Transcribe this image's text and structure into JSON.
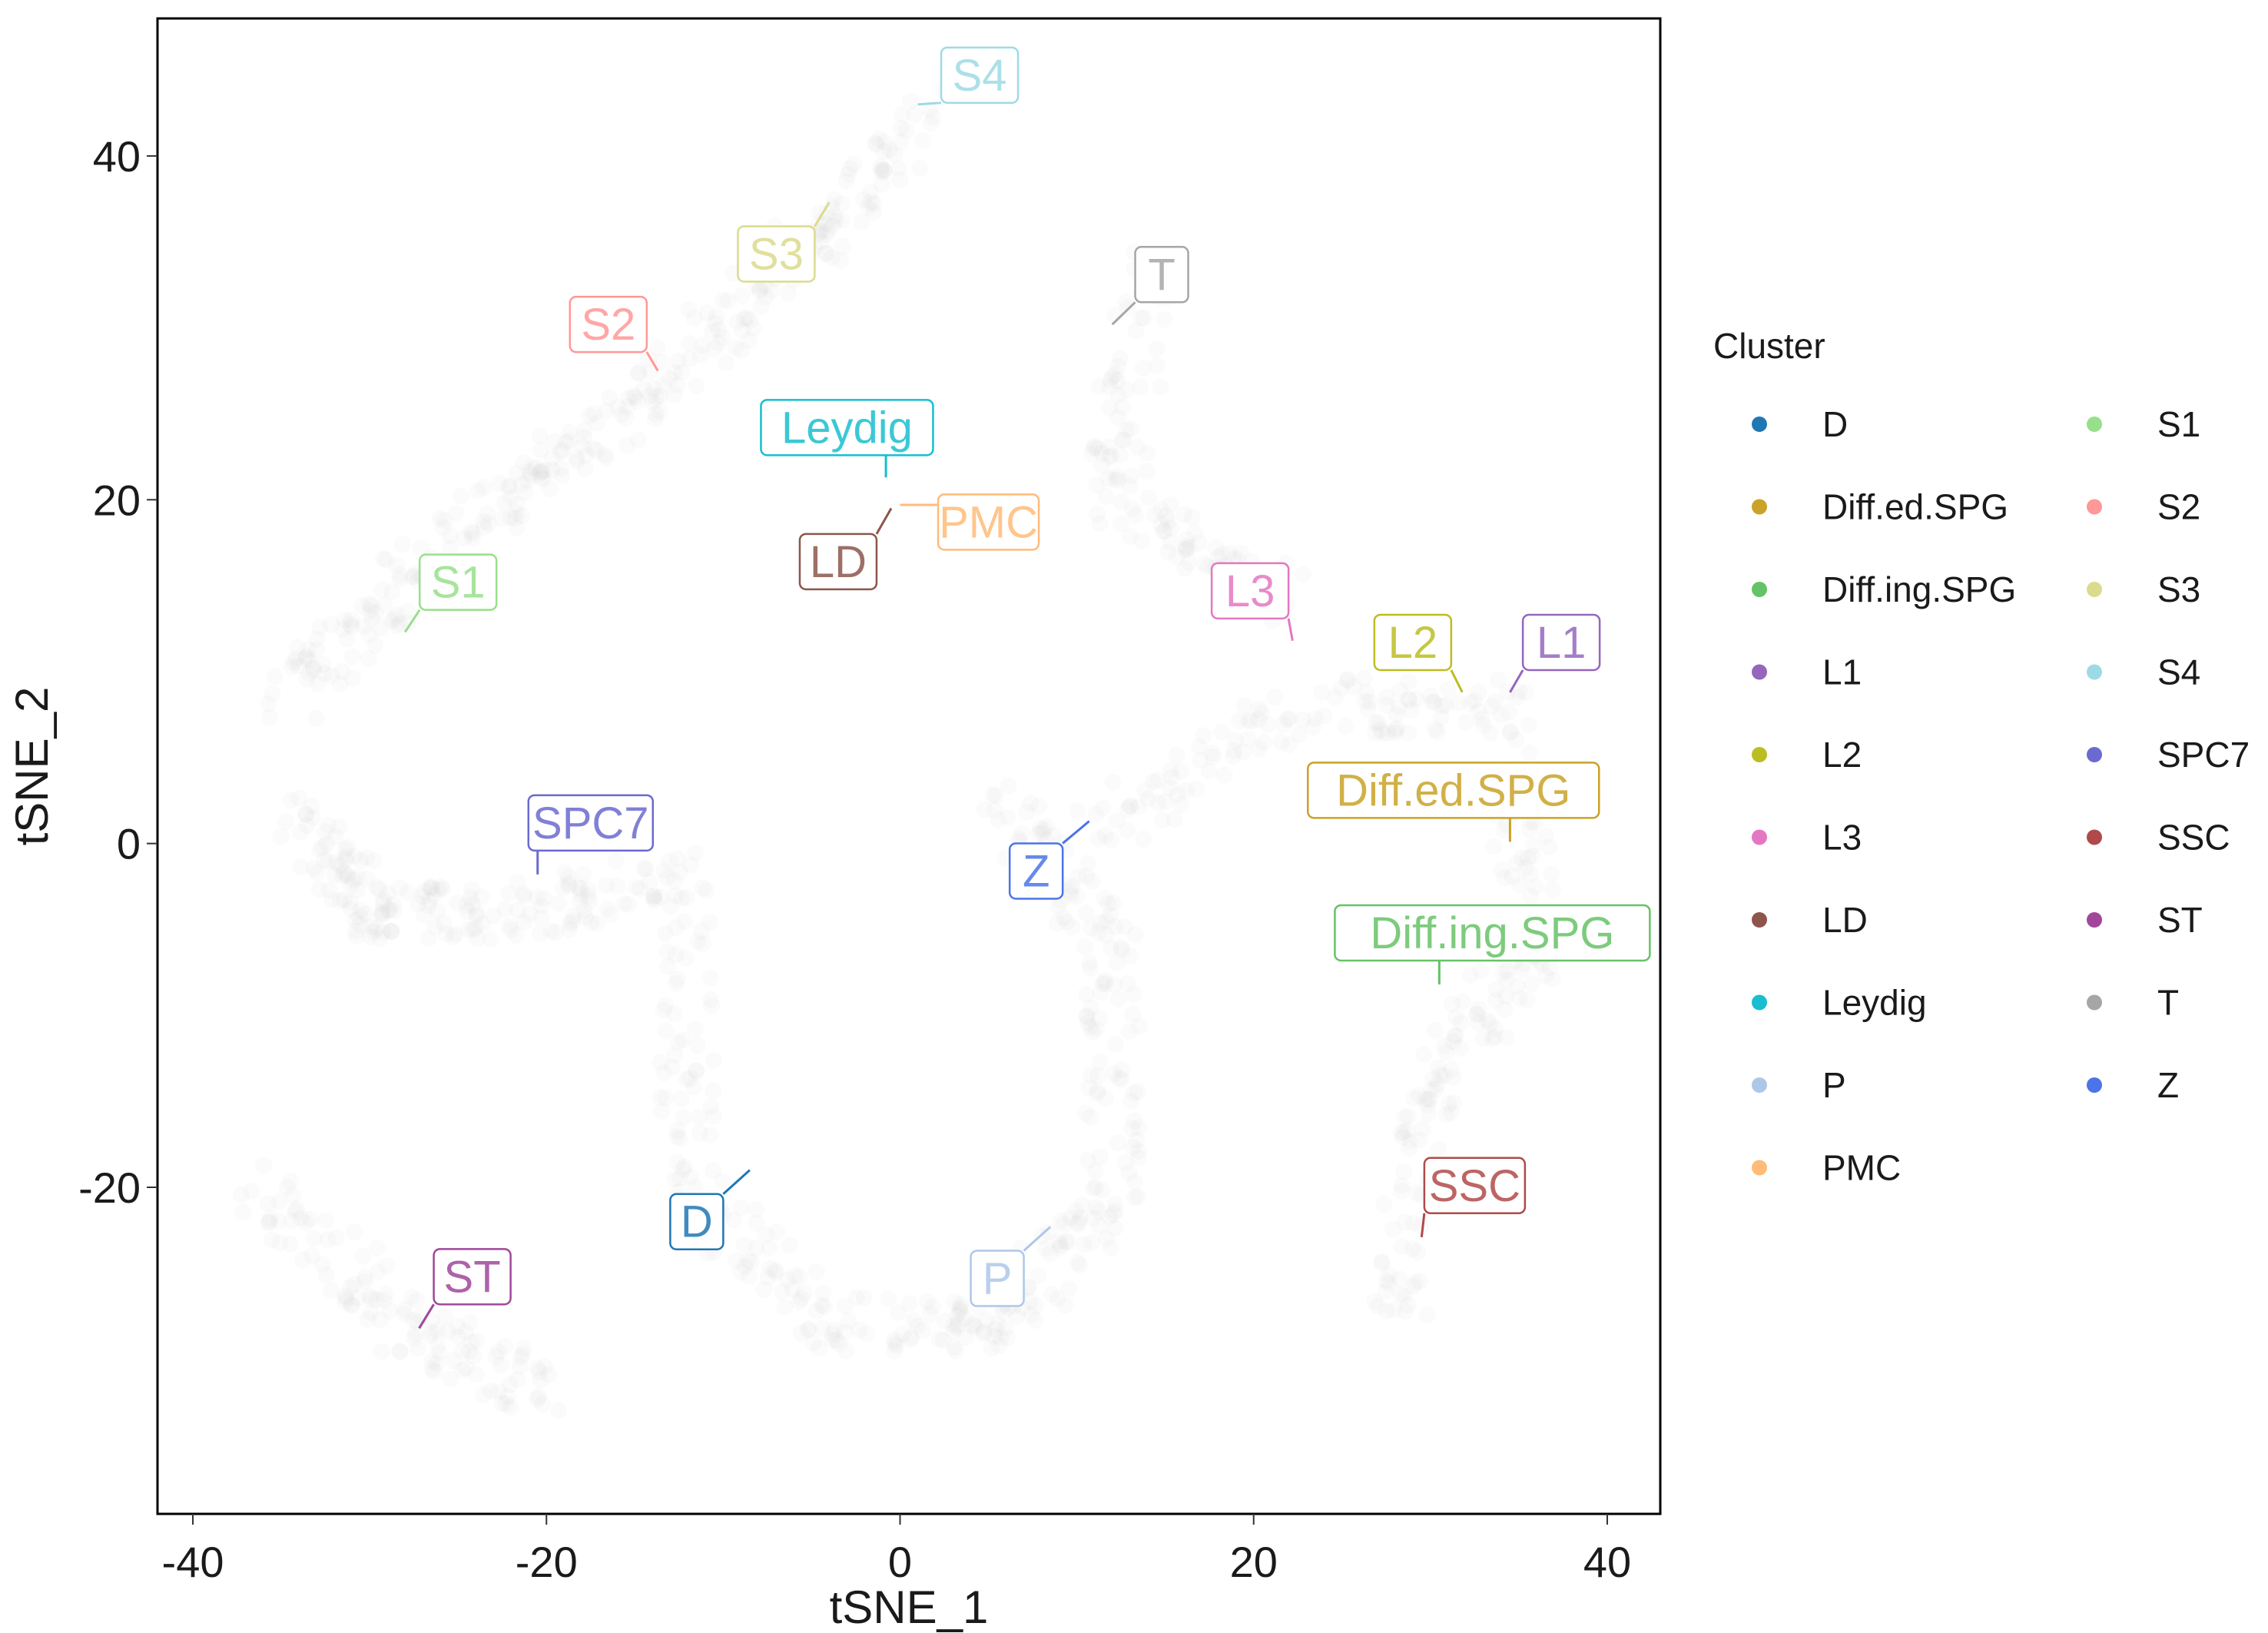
{
  "chart_data": {
    "type": "scatter",
    "xlabel": "tSNE_1",
    "ylabel": "tSNE_2",
    "xlim": [
      -42,
      43
    ],
    "ylim": [
      -39,
      48
    ],
    "xticks": [
      -40,
      -20,
      0,
      20,
      40
    ],
    "yticks": [
      40,
      20,
      0,
      -20
    ],
    "xtick_labels": [
      "-40",
      "-20",
      "0",
      "20",
      "40"
    ],
    "ytick_labels": [
      "40",
      "20",
      "0",
      "-20"
    ],
    "grid": false,
    "legend": {
      "title": "Cluster",
      "placement": "right",
      "entries": [
        {
          "name": "D",
          "color": "#1f77b4"
        },
        {
          "name": "Diff.ed.SPG",
          "color": "#c9a227"
        },
        {
          "name": "Diff.ing.SPG",
          "color": "#66c266"
        },
        {
          "name": "L1",
          "color": "#9467bd"
        },
        {
          "name": "L2",
          "color": "#bcbd22"
        },
        {
          "name": "L3",
          "color": "#e377c2"
        },
        {
          "name": "LD",
          "color": "#8c564b"
        },
        {
          "name": "Leydig",
          "color": "#17becf"
        },
        {
          "name": "P",
          "color": "#aec7e8"
        },
        {
          "name": "PMC",
          "color": "#ffbb78"
        },
        {
          "name": "S1",
          "color": "#98df8a"
        },
        {
          "name": "S2",
          "color": "#ff9896"
        },
        {
          "name": "S3",
          "color": "#dbdb8d"
        },
        {
          "name": "S4",
          "color": "#9edae5"
        },
        {
          "name": "SPC7",
          "color": "#6a6ad0"
        },
        {
          "name": "SSC",
          "color": "#b04a4a"
        },
        {
          "name": "ST",
          "color": "#a0479a"
        },
        {
          "name": "T",
          "color": "#a6a6a6"
        },
        {
          "name": "Z",
          "color": "#4a74e8"
        }
      ]
    },
    "cluster_labels": [
      {
        "name": "S4",
        "label_x": 4.5,
        "label_y": 44.7,
        "anchor_x": 1.0,
        "anchor_y": 43.0,
        "color": "#9edae5"
      },
      {
        "name": "S3",
        "label_x": -7.0,
        "label_y": 34.3,
        "anchor_x": -4.0,
        "anchor_y": 37.3,
        "color": "#dbdb8d"
      },
      {
        "name": "T",
        "label_x": 14.8,
        "label_y": 33.1,
        "anchor_x": 12.0,
        "anchor_y": 30.2,
        "color": "#a6a6a6"
      },
      {
        "name": "S2",
        "label_x": -16.5,
        "label_y": 30.2,
        "anchor_x": -13.7,
        "anchor_y": 27.5,
        "color": "#ff9896"
      },
      {
        "name": "Leydig",
        "label_x": -3.0,
        "label_y": 24.2,
        "anchor_x": -0.8,
        "anchor_y": 21.3,
        "color": "#17becf"
      },
      {
        "name": "PMC",
        "label_x": 5.0,
        "label_y": 18.7,
        "anchor_x": 0.0,
        "anchor_y": 19.7,
        "color": "#ffbb78"
      },
      {
        "name": "LD",
        "label_x": -3.5,
        "label_y": 16.4,
        "anchor_x": -0.5,
        "anchor_y": 19.5,
        "color": "#8c564b"
      },
      {
        "name": "S1",
        "label_x": -25.0,
        "label_y": 15.2,
        "anchor_x": -28.0,
        "anchor_y": 12.3,
        "color": "#98df8a"
      },
      {
        "name": "L3",
        "label_x": 19.8,
        "label_y": 14.7,
        "anchor_x": 22.2,
        "anchor_y": 11.8,
        "color": "#e377c2"
      },
      {
        "name": "L2",
        "label_x": 29.0,
        "label_y": 11.7,
        "anchor_x": 31.8,
        "anchor_y": 8.8,
        "color": "#bcbd22"
      },
      {
        "name": "L1",
        "label_x": 37.4,
        "label_y": 11.7,
        "anchor_x": 34.5,
        "anchor_y": 8.8,
        "color": "#9467bd"
      },
      {
        "name": "Diff.ed.SPG",
        "label_x": 31.3,
        "label_y": 3.1,
        "anchor_x": 34.5,
        "anchor_y": 0.1,
        "color": "#c9a227"
      },
      {
        "name": "SPC7",
        "label_x": -17.5,
        "label_y": 1.2,
        "anchor_x": -20.5,
        "anchor_y": -1.8,
        "color": "#6a6ad0"
      },
      {
        "name": "Z",
        "label_x": 7.7,
        "label_y": -1.6,
        "anchor_x": 10.7,
        "anchor_y": 1.3,
        "color": "#4a74e8"
      },
      {
        "name": "Diff.ing.SPG",
        "label_x": 33.5,
        "label_y": -5.2,
        "anchor_x": 30.5,
        "anchor_y": -8.2,
        "color": "#66c266"
      },
      {
        "name": "SSC",
        "label_x": 32.5,
        "label_y": -19.9,
        "anchor_x": 29.5,
        "anchor_y": -22.9,
        "color": "#b04a4a"
      },
      {
        "name": "D",
        "label_x": -11.5,
        "label_y": -22.0,
        "anchor_x": -8.5,
        "anchor_y": -19.0,
        "color": "#1f77b4"
      },
      {
        "name": "ST",
        "label_x": -24.2,
        "label_y": -25.2,
        "anchor_x": -27.2,
        "anchor_y": -28.2,
        "color": "#a0479a"
      },
      {
        "name": "P",
        "label_x": 5.5,
        "label_y": -25.3,
        "anchor_x": 8.5,
        "anchor_y": -22.3,
        "color": "#aec7e8"
      }
    ]
  }
}
